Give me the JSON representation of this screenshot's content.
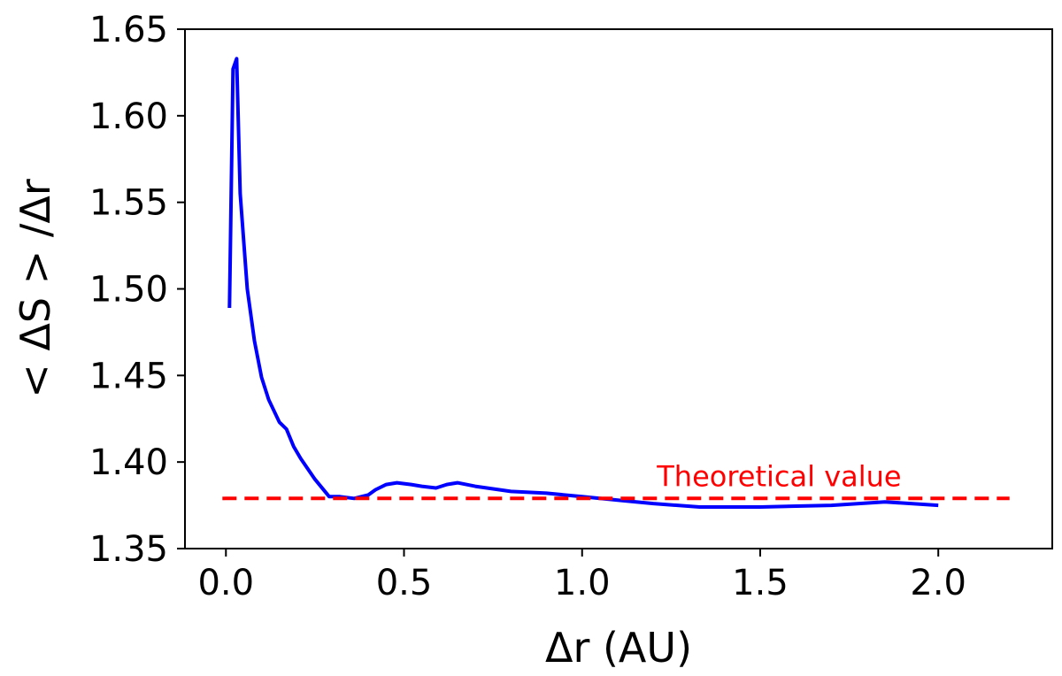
{
  "chart_data": {
    "type": "line",
    "xlabel": "Δr (AU)",
    "ylabel": "< ΔS > /Δr",
    "xlim": [
      -0.115,
      2.32
    ],
    "ylim": [
      1.35,
      1.65
    ],
    "xticks": [
      {
        "value": 0.0,
        "label": "0.0"
      },
      {
        "value": 0.5,
        "label": "0.5"
      },
      {
        "value": 1.0,
        "label": "1.0"
      },
      {
        "value": 1.5,
        "label": "1.5"
      },
      {
        "value": 2.0,
        "label": "2.0"
      }
    ],
    "yticks": [
      {
        "value": 1.35,
        "label": "1.35"
      },
      {
        "value": 1.4,
        "label": "1.40"
      },
      {
        "value": 1.45,
        "label": "1.45"
      },
      {
        "value": 1.5,
        "label": "1.50"
      },
      {
        "value": 1.55,
        "label": "1.55"
      },
      {
        "value": 1.6,
        "label": "1.60"
      },
      {
        "value": 1.65,
        "label": "1.65"
      }
    ],
    "grid": false,
    "series": [
      {
        "color": "#0000ff",
        "style": "solid",
        "x": [
          0.01,
          0.02,
          0.03,
          0.04,
          0.06,
          0.08,
          0.1,
          0.12,
          0.15,
          0.17,
          0.19,
          0.21,
          0.25,
          0.29,
          0.32,
          0.36,
          0.4,
          0.42,
          0.45,
          0.48,
          0.52,
          0.55,
          0.59,
          0.62,
          0.65,
          0.7,
          0.8,
          0.9,
          1.0,
          1.1,
          1.2,
          1.33,
          1.5,
          1.7,
          1.85,
          2.0
        ],
        "y": [
          1.489,
          1.627,
          1.633,
          1.555,
          1.5,
          1.47,
          1.449,
          1.436,
          1.423,
          1.419,
          1.409,
          1.402,
          1.39,
          1.38,
          1.38,
          1.379,
          1.381,
          1.384,
          1.387,
          1.388,
          1.387,
          1.386,
          1.385,
          1.387,
          1.388,
          1.386,
          1.383,
          1.382,
          1.38,
          1.378,
          1.376,
          1.374,
          1.374,
          1.375,
          1.377,
          1.375
        ]
      },
      {
        "color": "#ff0000",
        "style": "dashed",
        "x": [
          -0.01,
          2.2
        ],
        "y": [
          1.379,
          1.379
        ]
      }
    ],
    "annotations": [
      {
        "text": "Theoretical value",
        "x": 1.21,
        "y": 1.386,
        "color": "#ff0000"
      }
    ]
  }
}
